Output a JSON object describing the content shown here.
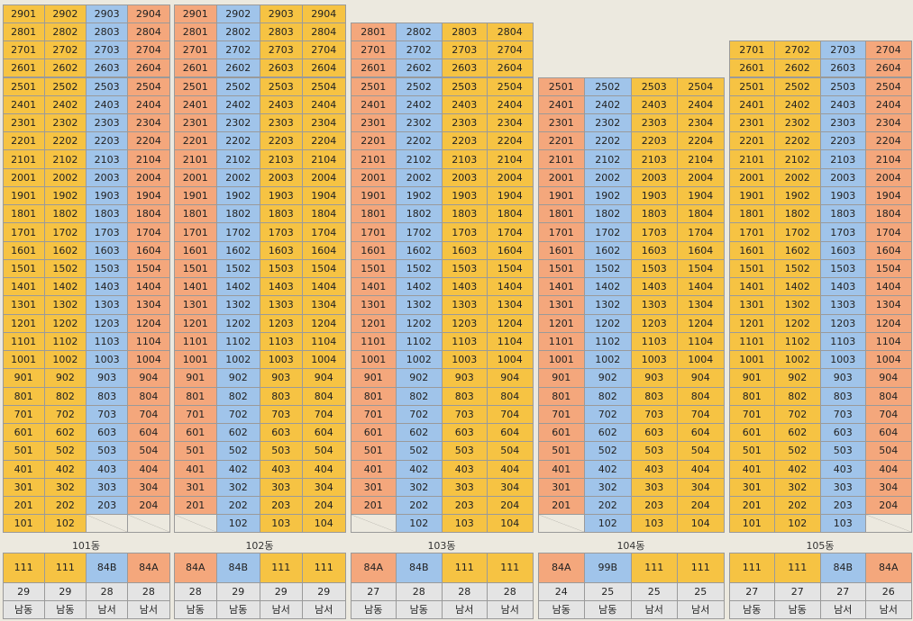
{
  "type_colors": {
    "111": "#f6c343",
    "84A": "#f4a77c",
    "84B": "#a0c4ea",
    "99B": "#a0c4ea"
  },
  "buildings": [
    {
      "name": "101동",
      "types": [
        "111",
        "111",
        "84B",
        "84A"
      ],
      "counts": [
        29,
        29,
        28,
        28
      ],
      "directions": [
        "남동",
        "남동",
        "남서",
        "남서"
      ],
      "units": [
        [
          "2901",
          "2902",
          "2903",
          "2904"
        ],
        [
          "2801",
          "2802",
          "2803",
          "2804"
        ],
        [
          "2701",
          "2702",
          "2703",
          "2704"
        ],
        [
          "2601",
          "2602",
          "2603",
          "2604"
        ],
        [
          "2501",
          "2502",
          "2503",
          "2504"
        ],
        [
          "2401",
          "2402",
          "2403",
          "2404"
        ],
        [
          "2301",
          "2302",
          "2303",
          "2304"
        ],
        [
          "2201",
          "2202",
          "2203",
          "2204"
        ],
        [
          "2101",
          "2102",
          "2103",
          "2104"
        ],
        [
          "2001",
          "2002",
          "2003",
          "2004"
        ],
        [
          "1901",
          "1902",
          "1903",
          "1904"
        ],
        [
          "1801",
          "1802",
          "1803",
          "1804"
        ],
        [
          "1701",
          "1702",
          "1703",
          "1704"
        ],
        [
          "1601",
          "1602",
          "1603",
          "1604"
        ],
        [
          "1501",
          "1502",
          "1503",
          "1504"
        ],
        [
          "1401",
          "1402",
          "1403",
          "1404"
        ],
        [
          "1301",
          "1302",
          "1303",
          "1304"
        ],
        [
          "1201",
          "1202",
          "1203",
          "1204"
        ],
        [
          "1101",
          "1102",
          "1103",
          "1104"
        ],
        [
          "1001",
          "1002",
          "1003",
          "1004"
        ],
        [
          "901",
          "902",
          "903",
          "904"
        ],
        [
          "801",
          "802",
          "803",
          "804"
        ],
        [
          "701",
          "702",
          "703",
          "704"
        ],
        [
          "601",
          "602",
          "603",
          "604"
        ],
        [
          "501",
          "502",
          "503",
          "504"
        ],
        [
          "401",
          "402",
          "403",
          "404"
        ],
        [
          "301",
          "302",
          "303",
          "304"
        ],
        [
          "201",
          "202",
          "203",
          "204"
        ],
        [
          "101",
          "102",
          null,
          null
        ]
      ]
    },
    {
      "name": "102동",
      "types": [
        "84A",
        "84B",
        "111",
        "111"
      ],
      "counts": [
        28,
        29,
        29,
        29
      ],
      "directions": [
        "남동",
        "남동",
        "남서",
        "남서"
      ],
      "units": [
        [
          "2901",
          "2902",
          "2903",
          "2904"
        ],
        [
          "2801",
          "2802",
          "2803",
          "2804"
        ],
        [
          "2701",
          "2702",
          "2703",
          "2704"
        ],
        [
          "2601",
          "2602",
          "2603",
          "2604"
        ],
        [
          "2501",
          "2502",
          "2503",
          "2504"
        ],
        [
          "2401",
          "2402",
          "2403",
          "2404"
        ],
        [
          "2301",
          "2302",
          "2303",
          "2304"
        ],
        [
          "2201",
          "2202",
          "2203",
          "2204"
        ],
        [
          "2101",
          "2102",
          "2103",
          "2104"
        ],
        [
          "2001",
          "2002",
          "2003",
          "2004"
        ],
        [
          "1901",
          "1902",
          "1903",
          "1904"
        ],
        [
          "1801",
          "1802",
          "1803",
          "1804"
        ],
        [
          "1701",
          "1702",
          "1703",
          "1704"
        ],
        [
          "1601",
          "1602",
          "1603",
          "1604"
        ],
        [
          "1501",
          "1502",
          "1503",
          "1504"
        ],
        [
          "1401",
          "1402",
          "1403",
          "1404"
        ],
        [
          "1301",
          "1302",
          "1303",
          "1304"
        ],
        [
          "1201",
          "1202",
          "1203",
          "1204"
        ],
        [
          "1101",
          "1102",
          "1103",
          "1104"
        ],
        [
          "1001",
          "1002",
          "1003",
          "1004"
        ],
        [
          "901",
          "902",
          "903",
          "904"
        ],
        [
          "801",
          "802",
          "803",
          "804"
        ],
        [
          "701",
          "702",
          "703",
          "704"
        ],
        [
          "601",
          "602",
          "603",
          "604"
        ],
        [
          "501",
          "502",
          "503",
          "504"
        ],
        [
          "401",
          "402",
          "403",
          "404"
        ],
        [
          "301",
          "302",
          "303",
          "304"
        ],
        [
          "201",
          "202",
          "203",
          "204"
        ],
        [
          null,
          "102",
          "103",
          "104"
        ]
      ]
    },
    {
      "name": "103동",
      "types": [
        "84A",
        "84B",
        "111",
        "111"
      ],
      "counts": [
        27,
        28,
        28,
        28
      ],
      "directions": [
        "남동",
        "남동",
        "남서",
        "남서"
      ],
      "units": [
        [
          "2801",
          "2802",
          "2803",
          "2804"
        ],
        [
          "2701",
          "2702",
          "2703",
          "2704"
        ],
        [
          "2601",
          "2602",
          "2603",
          "2604"
        ],
        [
          "2501",
          "2502",
          "2503",
          "2504"
        ],
        [
          "2401",
          "2402",
          "2403",
          "2404"
        ],
        [
          "2301",
          "2302",
          "2303",
          "2304"
        ],
        [
          "2201",
          "2202",
          "2203",
          "2204"
        ],
        [
          "2101",
          "2102",
          "2103",
          "2104"
        ],
        [
          "2001",
          "2002",
          "2003",
          "2004"
        ],
        [
          "1901",
          "1902",
          "1903",
          "1904"
        ],
        [
          "1801",
          "1802",
          "1803",
          "1804"
        ],
        [
          "1701",
          "1702",
          "1703",
          "1704"
        ],
        [
          "1601",
          "1602",
          "1603",
          "1604"
        ],
        [
          "1501",
          "1502",
          "1503",
          "1504"
        ],
        [
          "1401",
          "1402",
          "1403",
          "1404"
        ],
        [
          "1301",
          "1302",
          "1303",
          "1304"
        ],
        [
          "1201",
          "1202",
          "1203",
          "1204"
        ],
        [
          "1101",
          "1102",
          "1103",
          "1104"
        ],
        [
          "1001",
          "1002",
          "1003",
          "1004"
        ],
        [
          "901",
          "902",
          "903",
          "904"
        ],
        [
          "801",
          "802",
          "803",
          "804"
        ],
        [
          "701",
          "702",
          "703",
          "704"
        ],
        [
          "601",
          "602",
          "603",
          "604"
        ],
        [
          "501",
          "502",
          "503",
          "504"
        ],
        [
          "401",
          "402",
          "403",
          "404"
        ],
        [
          "301",
          "302",
          "303",
          "304"
        ],
        [
          "201",
          "202",
          "203",
          "204"
        ],
        [
          null,
          "102",
          "103",
          "104"
        ]
      ]
    },
    {
      "name": "104동",
      "types": [
        "84A",
        "99B",
        "111",
        "111"
      ],
      "counts": [
        24,
        25,
        25,
        25
      ],
      "directions": [
        "남동",
        "남동",
        "남서",
        "남서"
      ],
      "units": [
        [
          "2501",
          "2502",
          "2503",
          "2504"
        ],
        [
          "2401",
          "2402",
          "2403",
          "2404"
        ],
        [
          "2301",
          "2302",
          "2303",
          "2304"
        ],
        [
          "2201",
          "2202",
          "2203",
          "2204"
        ],
        [
          "2101",
          "2102",
          "2103",
          "2104"
        ],
        [
          "2001",
          "2002",
          "2003",
          "2004"
        ],
        [
          "1901",
          "1902",
          "1903",
          "1904"
        ],
        [
          "1801",
          "1802",
          "1803",
          "1804"
        ],
        [
          "1701",
          "1702",
          "1703",
          "1704"
        ],
        [
          "1601",
          "1602",
          "1603",
          "1604"
        ],
        [
          "1501",
          "1502",
          "1503",
          "1504"
        ],
        [
          "1401",
          "1402",
          "1403",
          "1404"
        ],
        [
          "1301",
          "1302",
          "1303",
          "1304"
        ],
        [
          "1201",
          "1202",
          "1203",
          "1204"
        ],
        [
          "1101",
          "1102",
          "1103",
          "1104"
        ],
        [
          "1001",
          "1002",
          "1003",
          "1004"
        ],
        [
          "901",
          "902",
          "903",
          "904"
        ],
        [
          "801",
          "802",
          "803",
          "804"
        ],
        [
          "701",
          "702",
          "703",
          "704"
        ],
        [
          "601",
          "602",
          "603",
          "604"
        ],
        [
          "501",
          "502",
          "503",
          "504"
        ],
        [
          "401",
          "402",
          "403",
          "404"
        ],
        [
          "301",
          "302",
          "303",
          "304"
        ],
        [
          "201",
          "202",
          "203",
          "204"
        ],
        [
          null,
          "102",
          "103",
          "104"
        ]
      ]
    },
    {
      "name": "105동",
      "types": [
        "111",
        "111",
        "84B",
        "84A"
      ],
      "counts": [
        27,
        27,
        27,
        26
      ],
      "directions": [
        "남동",
        "남동",
        "남서",
        "남서"
      ],
      "units": [
        [
          "2701",
          "2702",
          "2703",
          "2704"
        ],
        [
          "2601",
          "2602",
          "2603",
          "2604"
        ],
        [
          "2501",
          "2502",
          "2503",
          "2504"
        ],
        [
          "2401",
          "2402",
          "2403",
          "2404"
        ],
        [
          "2301",
          "2302",
          "2303",
          "2304"
        ],
        [
          "2201",
          "2202",
          "2203",
          "2204"
        ],
        [
          "2101",
          "2102",
          "2103",
          "2104"
        ],
        [
          "2001",
          "2002",
          "2003",
          "2004"
        ],
        [
          "1901",
          "1902",
          "1903",
          "1904"
        ],
        [
          "1801",
          "1802",
          "1803",
          "1804"
        ],
        [
          "1701",
          "1702",
          "1703",
          "1704"
        ],
        [
          "1601",
          "1602",
          "1603",
          "1604"
        ],
        [
          "1501",
          "1502",
          "1503",
          "1504"
        ],
        [
          "1401",
          "1402",
          "1403",
          "1404"
        ],
        [
          "1301",
          "1302",
          "1303",
          "1304"
        ],
        [
          "1201",
          "1202",
          "1203",
          "1204"
        ],
        [
          "1101",
          "1102",
          "1103",
          "1104"
        ],
        [
          "1001",
          "1002",
          "1003",
          "1004"
        ],
        [
          "901",
          "902",
          "903",
          "904"
        ],
        [
          "801",
          "802",
          "803",
          "804"
        ],
        [
          "701",
          "702",
          "703",
          "704"
        ],
        [
          "601",
          "602",
          "603",
          "604"
        ],
        [
          "501",
          "502",
          "503",
          "504"
        ],
        [
          "401",
          "402",
          "403",
          "404"
        ],
        [
          "301",
          "302",
          "303",
          "304"
        ],
        [
          "201",
          "202",
          "203",
          "204"
        ],
        [
          "101",
          "102",
          "103",
          null
        ]
      ]
    }
  ]
}
